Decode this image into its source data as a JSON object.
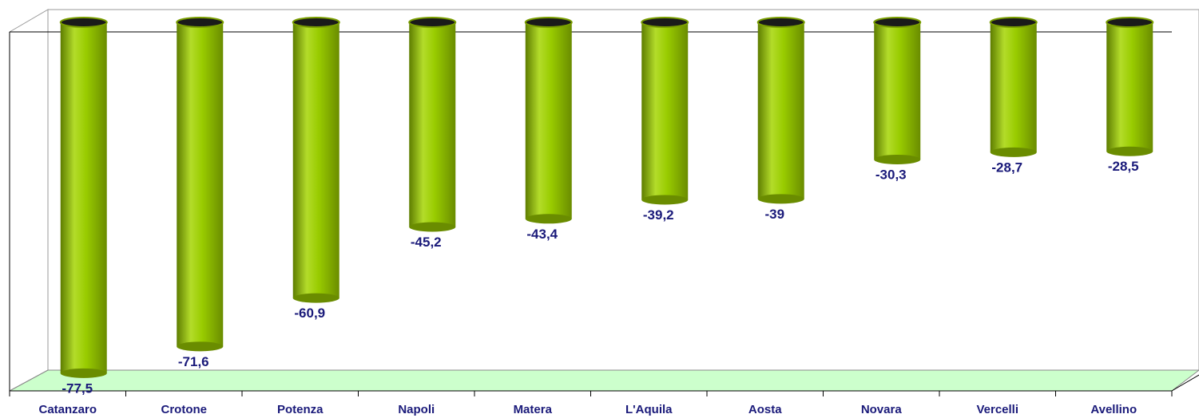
{
  "chart_data": {
    "type": "bar",
    "categories": [
      "Catanzaro",
      "Crotone",
      "Potenza",
      "Napoli",
      "Matera",
      "L'Aquila",
      "Aosta",
      "Novara",
      "Vercelli",
      "Avellino"
    ],
    "values": [
      -77.5,
      -71.6,
      -60.9,
      -45.2,
      -43.4,
      -39.2,
      -39,
      -30.3,
      -28.7,
      -28.5
    ],
    "value_labels": [
      "-77,5",
      "-71,6",
      "-60,9",
      "-45,2",
      "-43,4",
      "-39,2",
      "-39",
      "-30,3",
      "-28,7",
      "-28,5"
    ],
    "color": "#99cc00",
    "ylim": [
      -80,
      0
    ]
  }
}
